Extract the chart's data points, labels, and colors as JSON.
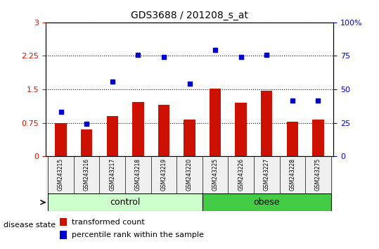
{
  "title": "GDS3688 / 201208_s_at",
  "samples": [
    "GSM243215",
    "GSM243216",
    "GSM243217",
    "GSM243218",
    "GSM243219",
    "GSM243220",
    "GSM243225",
    "GSM243226",
    "GSM243227",
    "GSM243228",
    "GSM243275"
  ],
  "bar_values": [
    0.75,
    0.6,
    0.9,
    1.22,
    1.15,
    0.82,
    1.52,
    1.2,
    1.47,
    0.78,
    0.82
  ],
  "dot_values": [
    1.0,
    0.72,
    1.68,
    2.28,
    2.22,
    1.62,
    2.38,
    2.22,
    2.28,
    1.25,
    1.25
  ],
  "bar_color": "#cc1100",
  "dot_color": "#0000cc",
  "control_group": [
    0,
    1,
    2,
    3,
    4,
    5
  ],
  "obese_group": [
    6,
    7,
    8,
    9,
    10
  ],
  "control_label": "control",
  "obese_label": "obese",
  "disease_state_label": "disease state",
  "ylim_left": [
    0,
    3
  ],
  "ylim_right": [
    0,
    100
  ],
  "yticks_left": [
    0,
    0.75,
    1.5,
    2.25,
    3
  ],
  "yticks_right": [
    0,
    25,
    50,
    75,
    100
  ],
  "ytick_labels_left": [
    "0",
    "0.75",
    "1.5",
    "2.25",
    "3"
  ],
  "ytick_labels_right": [
    "0",
    "25",
    "50",
    "75",
    "100%"
  ],
  "left_tick_color": "#cc1100",
  "right_tick_color": "#0000cc",
  "grid_color": "black",
  "bg_color": "#f0f0f0",
  "control_bg": "#ccffcc",
  "obese_bg": "#44cc44",
  "legend_bar_label": "transformed count",
  "legend_dot_label": "percentile rank within the sample",
  "figsize": [
    5.39,
    3.54
  ],
  "dpi": 100
}
